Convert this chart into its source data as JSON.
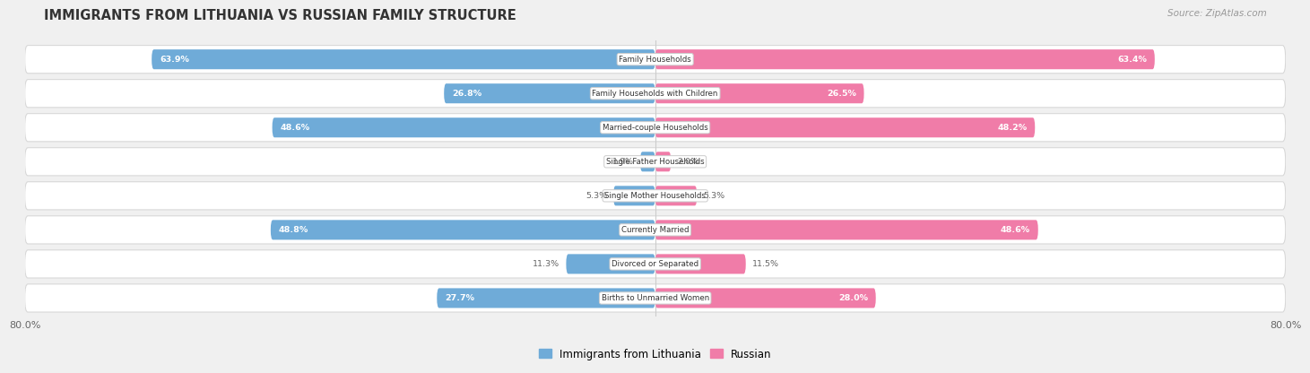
{
  "title": "IMMIGRANTS FROM LITHUANIA VS RUSSIAN FAMILY STRUCTURE",
  "source": "Source: ZipAtlas.com",
  "categories": [
    "Family Households",
    "Family Households with Children",
    "Married-couple Households",
    "Single Father Households",
    "Single Mother Households",
    "Currently Married",
    "Divorced or Separated",
    "Births to Unmarried Women"
  ],
  "lithuania_values": [
    63.9,
    26.8,
    48.6,
    1.9,
    5.3,
    48.8,
    11.3,
    27.7
  ],
  "russian_values": [
    63.4,
    26.5,
    48.2,
    2.0,
    5.3,
    48.6,
    11.5,
    28.0
  ],
  "lithuania_labels": [
    "63.9%",
    "26.8%",
    "48.6%",
    "1.9%",
    "5.3%",
    "48.8%",
    "11.3%",
    "27.7%"
  ],
  "russian_labels": [
    "63.4%",
    "26.5%",
    "48.2%",
    "2.0%",
    "5.3%",
    "48.6%",
    "11.5%",
    "28.0%"
  ],
  "lithuania_color": "#6fabd8",
  "russian_color": "#f07ca8",
  "axis_max": 80.0,
  "legend_labels": [
    "Immigrants from Lithuania",
    "Russian"
  ],
  "background_color": "#f0f0f0",
  "row_bg_color": "#f8f8f8",
  "row_edge_color": "#d8d8d8",
  "label_color_large": "#ffffff",
  "label_color_small": "#666666",
  "center_line_color": "#cccccc",
  "title_color": "#333333",
  "source_color": "#999999",
  "threshold": 12.0
}
